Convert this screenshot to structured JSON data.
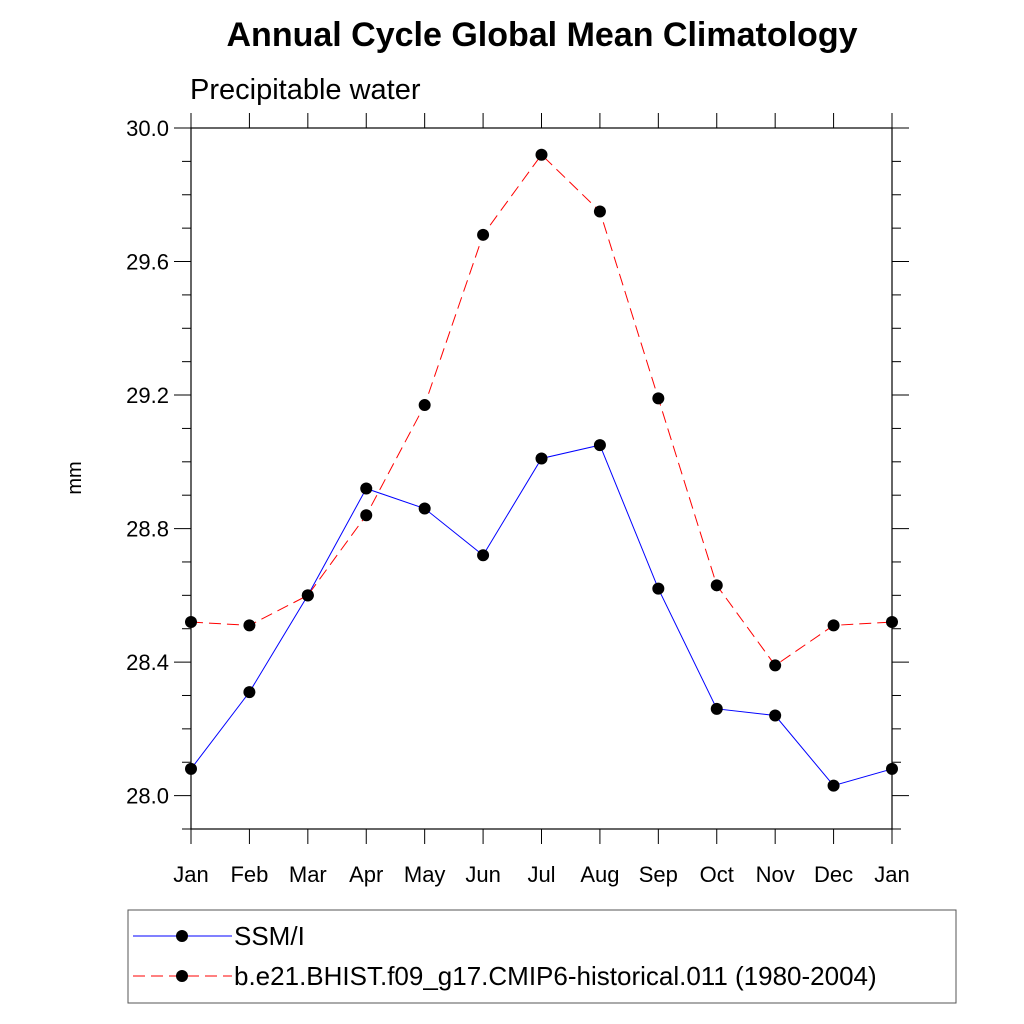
{
  "chart_data": {
    "type": "line",
    "title": "Annual Cycle Global Mean Climatology",
    "subtitle": "Precipitable water",
    "xlabel": "",
    "ylabel": "mm",
    "categories": [
      "Jan",
      "Feb",
      "Mar",
      "Apr",
      "May",
      "Jun",
      "Jul",
      "Aug",
      "Sep",
      "Oct",
      "Nov",
      "Dec",
      "Jan"
    ],
    "ylim": [
      27.9,
      30.0
    ],
    "yticks": [
      28.0,
      28.4,
      28.8,
      29.2,
      29.6,
      30.0
    ],
    "ytick_labels": [
      "28.0",
      "28.4",
      "28.8",
      "29.2",
      "29.6",
      "30.0"
    ],
    "ytick_minor_step": 0.1,
    "grid": false,
    "legend_position": "bottom",
    "series": [
      {
        "name": "SSM/I",
        "color": "#0000ff",
        "dash": "solid",
        "marker": "filled-circle",
        "values": [
          28.08,
          28.31,
          28.6,
          28.92,
          28.86,
          28.72,
          29.01,
          29.05,
          28.62,
          28.26,
          28.24,
          28.03,
          28.08
        ]
      },
      {
        "name": "b.e21.BHIST.f09_g17.CMIP6-historical.011 (1980-2004)",
        "color": "#ff0000",
        "dash": "dashed",
        "marker": "filled-circle",
        "values": [
          28.52,
          28.51,
          28.6,
          28.84,
          29.17,
          29.68,
          29.92,
          29.75,
          29.19,
          28.63,
          28.39,
          28.51,
          28.52
        ]
      }
    ]
  }
}
